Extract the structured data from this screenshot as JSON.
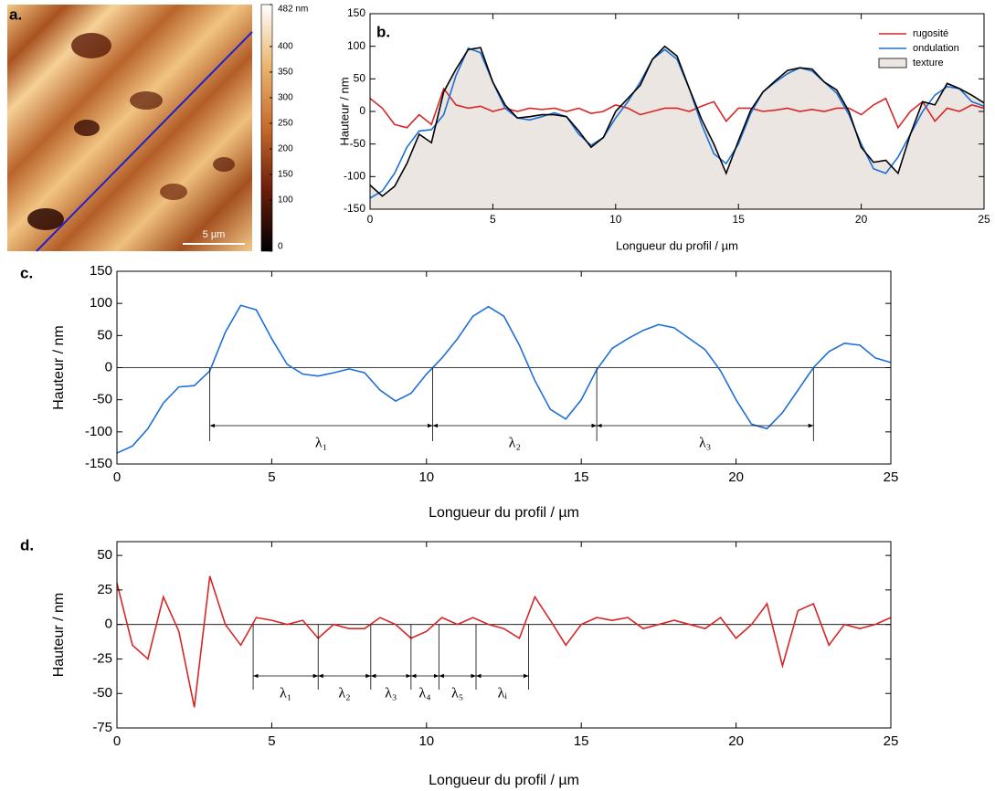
{
  "chart_data": [
    {
      "type": "image",
      "label": "a.",
      "clim": [
        0,
        482
      ],
      "scalebar": "5 µm",
      "colorbar_ticks": [
        {
          "value": 482,
          "label": "482 nm"
        },
        400,
        350,
        300,
        250,
        200,
        150,
        100,
        0
      ]
    },
    {
      "type": "line",
      "label": "b.",
      "xlabel": "Longueur du profil / µm",
      "ylabel": "Hauteur / nm",
      "xlim": [
        0,
        25
      ],
      "ylim": [
        -150,
        150
      ],
      "xticks": [
        0,
        5,
        10,
        15,
        20,
        25
      ],
      "yticks": [
        -150,
        -100,
        -50,
        0,
        50,
        100,
        150
      ],
      "legend": "upper right",
      "x": [
        0,
        0.5,
        1,
        1.5,
        2,
        2.5,
        3,
        3.5,
        4,
        4.5,
        5,
        5.5,
        6,
        6.5,
        7,
        7.5,
        8,
        8.5,
        9,
        9.5,
        10,
        10.5,
        11,
        11.5,
        12,
        12.5,
        13,
        13.5,
        14,
        14.5,
        15,
        15.5,
        16,
        16.5,
        17,
        17.5,
        18,
        18.5,
        19,
        19.5,
        20,
        20.5,
        21,
        21.5,
        22,
        22.5,
        23,
        23.5,
        24,
        24.5,
        25
      ],
      "series": [
        {
          "name": "rugosité",
          "color": "#d62728",
          "values": [
            20,
            5,
            -20,
            -25,
            -5,
            -20,
            35,
            10,
            5,
            8,
            0,
            5,
            0,
            5,
            3,
            5,
            0,
            5,
            -3,
            0,
            10,
            5,
            -5,
            0,
            5,
            5,
            0,
            8,
            15,
            -15,
            5,
            5,
            0,
            2,
            5,
            0,
            3,
            0,
            5,
            5,
            -5,
            10,
            20,
            -25,
            0,
            15,
            -15,
            5,
            0,
            10,
            5
          ]
        },
        {
          "name": "ondulation",
          "color": "#1f6fd6",
          "values": [
            -133,
            -122,
            -95,
            -55,
            -30,
            -28,
            -5,
            55,
            97,
            90,
            45,
            5,
            -10,
            -13,
            -8,
            -2,
            -8,
            -35,
            -52,
            -40,
            -10,
            15,
            45,
            80,
            95,
            80,
            35,
            -20,
            -65,
            -80,
            -50,
            -3,
            30,
            45,
            58,
            67,
            62,
            45,
            28,
            -5,
            -50,
            -88,
            -95,
            -70,
            -35,
            0,
            25,
            38,
            35,
            15,
            8
          ]
        },
        {
          "name": "texture",
          "color": "#000000",
          "area": "#ebe6e1",
          "values": [
            -113,
            -130,
            -115,
            -80,
            -35,
            -48,
            30,
            65,
            95,
            98,
            45,
            10,
            -10,
            -8,
            -5,
            -5,
            -8,
            -30,
            -55,
            -40,
            0,
            20,
            40,
            80,
            100,
            85,
            35,
            -12,
            -50,
            -95,
            -45,
            2,
            30,
            47,
            63,
            67,
            65,
            45,
            33,
            0,
            -55,
            -78,
            -75,
            -95,
            -35,
            15,
            10,
            43,
            35,
            25,
            13
          ]
        }
      ]
    },
    {
      "type": "line",
      "label": "c.",
      "xlabel": "Longueur du profil / µm",
      "ylabel": "Hauteur / nm",
      "xlim": [
        0,
        25
      ],
      "ylim": [
        -150,
        150
      ],
      "xticks": [
        0,
        5,
        10,
        15,
        20,
        25
      ],
      "yticks": [
        -150,
        -100,
        -50,
        0,
        50,
        100,
        150
      ],
      "zero_line": true,
      "x": [
        0,
        0.5,
        1,
        1.5,
        2,
        2.5,
        3,
        3.5,
        4,
        4.5,
        5,
        5.5,
        6,
        6.5,
        7,
        7.5,
        8,
        8.5,
        9,
        9.5,
        10,
        10.5,
        11,
        11.5,
        12,
        12.5,
        13,
        13.5,
        14,
        14.5,
        15,
        15.5,
        16,
        16.5,
        17,
        17.5,
        18,
        18.5,
        19,
        19.5,
        20,
        20.5,
        21,
        21.5,
        22,
        22.5,
        23,
        23.5,
        24,
        24.5,
        25
      ],
      "series": [
        {
          "color": "#1f6fd6",
          "values": [
            -133,
            -122,
            -95,
            -55,
            -30,
            -28,
            -5,
            55,
            97,
            90,
            45,
            5,
            -10,
            -13,
            -8,
            -2,
            -8,
            -35,
            -52,
            -40,
            -10,
            15,
            45,
            80,
            95,
            80,
            35,
            -20,
            -65,
            -80,
            -50,
            -3,
            30,
            45,
            58,
            67,
            62,
            45,
            28,
            -5,
            -50,
            -88,
            -95,
            -70,
            -35,
            0,
            25,
            38,
            35,
            15,
            8
          ]
        }
      ],
      "intervals": {
        "bounds": [
          3.0,
          10.2,
          15.5,
          22.5
        ],
        "labels": [
          "λ₁",
          "λ₂",
          "λ₃"
        ]
      }
    },
    {
      "type": "line",
      "label": "d.",
      "xlabel": "Longueur du profil / µm",
      "ylabel": "Hauteur / nm",
      "xlim": [
        0,
        25
      ],
      "ylim": [
        -75,
        60
      ],
      "xticks": [
        0,
        5,
        10,
        15,
        20,
        25
      ],
      "yticks": [
        -75,
        -50,
        -25,
        0,
        25,
        50
      ],
      "zero_line": true,
      "x": [
        0,
        0.5,
        1,
        1.5,
        2,
        2.5,
        3,
        3.5,
        4,
        4.5,
        5,
        5.5,
        6,
        6.5,
        7,
        7.5,
        8,
        8.5,
        9,
        9.5,
        10,
        10.5,
        11,
        11.5,
        12,
        12.5,
        13,
        13.5,
        14,
        14.5,
        15,
        15.5,
        16,
        16.5,
        17,
        17.5,
        18,
        18.5,
        19,
        19.5,
        20,
        20.5,
        21,
        21.5,
        22,
        22.5,
        23,
        23.5,
        24,
        24.5,
        25
      ],
      "series": [
        {
          "color": "#d62728",
          "values": [
            30,
            -15,
            -25,
            20,
            -5,
            -60,
            35,
            0,
            -15,
            5,
            3,
            0,
            3,
            -10,
            0,
            -3,
            -3,
            5,
            0,
            -10,
            -5,
            5,
            0,
            5,
            0,
            -3,
            -10,
            20,
            3,
            -15,
            0,
            5,
            3,
            5,
            -3,
            0,
            3,
            0,
            -3,
            5,
            -10,
            0,
            15,
            -30,
            10,
            15,
            -15,
            0,
            -3,
            0,
            5
          ]
        }
      ],
      "intervals": {
        "bounds": [
          4.4,
          6.5,
          8.2,
          9.5,
          10.4,
          11.6,
          13.3
        ],
        "labels": [
          "λ₁",
          "λ₂",
          "λ₃",
          "λ₄",
          "λ₅",
          "λᵢ"
        ]
      }
    }
  ]
}
